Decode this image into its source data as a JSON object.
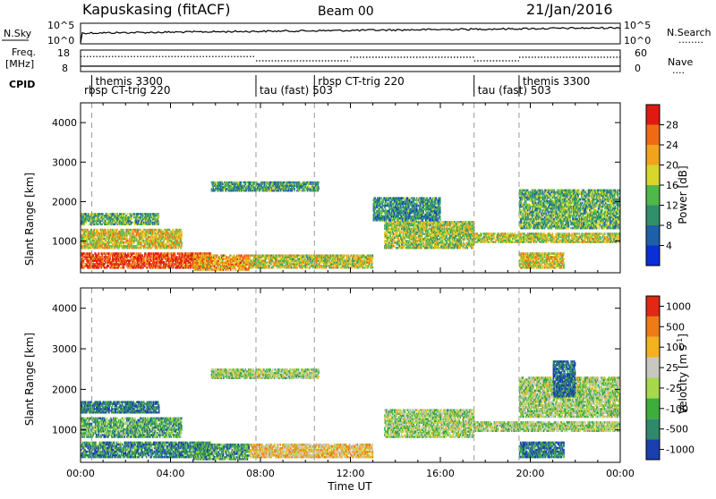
{
  "header": {
    "station": "Kapuskasing (fitACF)",
    "beam": "Beam 00",
    "date": "21/Jan/2016"
  },
  "sky_panel": {
    "left_label": "N.Sky",
    "left_ticks": [
      "10^5",
      "10^0"
    ],
    "right_ticks": [
      "10^5",
      "10^0"
    ],
    "right_label": "N.Search",
    "right_legend": "........"
  },
  "freq_panel": {
    "left_label_line1": "Freq.",
    "left_label_line2": "[MHz]",
    "left_ticks": [
      "18",
      "8"
    ],
    "right_ticks": [
      "60",
      "0"
    ],
    "right_label": "Nave",
    "right_legend": "....",
    "freq_level": 10.5,
    "nave_segments": [
      {
        "start": 0.0,
        "end": 7.8,
        "nave": 42
      },
      {
        "start": 7.8,
        "end": 12.0,
        "nave": 30
      },
      {
        "start": 12.0,
        "end": 17.5,
        "nave": 40
      },
      {
        "start": 17.5,
        "end": 19.5,
        "nave": 30
      },
      {
        "start": 19.5,
        "end": 24.0,
        "nave": 40
      }
    ]
  },
  "cpid_panel": {
    "label": "CPID",
    "modes": [
      {
        "text": "rbsp CT-trig 220",
        "start": 0.0,
        "row": 2
      },
      {
        "text": "themis 3300",
        "start": 0.5,
        "row": 1
      },
      {
        "text": "tau (fast) 503",
        "start": 7.8,
        "row": 2
      },
      {
        "text": "rbsp CT-trig 220",
        "start": 10.4,
        "row": 1
      },
      {
        "text": "tau (fast) 503",
        "start": 17.5,
        "row": 2
      },
      {
        "text": "themis 3300",
        "start": 19.5,
        "row": 1
      }
    ],
    "boundaries": [
      0.5,
      7.8,
      10.4,
      17.5,
      19.5
    ]
  },
  "chart_data": [
    {
      "type": "heatmap",
      "panel": "power",
      "ylabel": "Slant Range [km]",
      "ylim": [
        200,
        4500
      ],
      "yticks": [
        "1000",
        "2000",
        "3000",
        "4000"
      ],
      "colorbar_label": "Power [dB]",
      "colorbar_ticks": [
        "4",
        "8",
        "12",
        "16",
        "20",
        "24",
        "28"
      ],
      "colorbar_colors": [
        "#0a2fd6",
        "#1d5fa8",
        "#2f8f6a",
        "#4fb84a",
        "#d6d62a",
        "#f2a31c",
        "#f06a14",
        "#e01a12"
      ],
      "regions": [
        {
          "t0": 0.0,
          "t1": 5.8,
          "r0": 300,
          "r1": 700,
          "level": 0.9
        },
        {
          "t0": 0.0,
          "t1": 4.5,
          "r0": 800,
          "r1": 1300,
          "level": 0.6
        },
        {
          "t0": 0.0,
          "t1": 3.5,
          "r0": 1400,
          "r1": 1700,
          "level": 0.4
        },
        {
          "t0": 5.0,
          "t1": 7.5,
          "r0": 250,
          "r1": 650,
          "level": 0.7
        },
        {
          "t0": 7.5,
          "t1": 13.0,
          "r0": 300,
          "r1": 650,
          "level": 0.55
        },
        {
          "t0": 5.8,
          "t1": 10.6,
          "r0": 2250,
          "r1": 2500,
          "level": 0.35
        },
        {
          "t0": 13.5,
          "t1": 17.5,
          "r0": 800,
          "r1": 1500,
          "level": 0.5
        },
        {
          "t0": 17.5,
          "t1": 24.0,
          "r0": 950,
          "r1": 1200,
          "level": 0.55
        },
        {
          "t0": 19.5,
          "t1": 24.0,
          "r0": 1300,
          "r1": 2300,
          "level": 0.4
        },
        {
          "t0": 19.5,
          "t1": 21.5,
          "r0": 300,
          "r1": 700,
          "level": 0.6
        },
        {
          "t0": 13.0,
          "t1": 16.0,
          "r0": 1500,
          "r1": 2100,
          "level": 0.3
        }
      ]
    },
    {
      "type": "heatmap",
      "panel": "velocity",
      "ylabel": "Slant Range [km]",
      "xlabel": "Time UT",
      "ylim": [
        200,
        4500
      ],
      "yticks": [
        "1000",
        "2000",
        "3000",
        "4000"
      ],
      "xticks": [
        "00:00",
        "04:00",
        "08:00",
        "12:00",
        "16:00",
        "20:00",
        "00:00"
      ],
      "colorbar_label": "Velocity [m s^-1]",
      "colorbar_ticks": [
        "1000",
        "500",
        "100",
        "25",
        "-25",
        "-100",
        "-500",
        "-1000"
      ],
      "colorbar_colors": [
        "#1a3fb0",
        "#2e8a6a",
        "#3cae3c",
        "#a7d84a",
        "#c8c8c0",
        "#f2b21c",
        "#f07a14",
        "#e02812"
      ],
      "regions": [
        {
          "t0": 0.0,
          "t1": 5.8,
          "r0": 300,
          "r1": 700,
          "level": 0.2
        },
        {
          "t0": 0.0,
          "t1": 4.5,
          "r0": 800,
          "r1": 1300,
          "level": 0.3
        },
        {
          "t0": 0.0,
          "t1": 3.5,
          "r0": 1400,
          "r1": 1700,
          "level": 0.15
        },
        {
          "t0": 5.0,
          "t1": 7.5,
          "r0": 250,
          "r1": 650,
          "level": 0.25
        },
        {
          "t0": 7.5,
          "t1": 13.0,
          "r0": 300,
          "r1": 650,
          "level": 0.65
        },
        {
          "t0": 5.8,
          "t1": 10.6,
          "r0": 2250,
          "r1": 2500,
          "level": 0.45
        },
        {
          "t0": 13.5,
          "t1": 17.5,
          "r0": 800,
          "r1": 1500,
          "level": 0.45
        },
        {
          "t0": 17.5,
          "t1": 24.0,
          "r0": 950,
          "r1": 1200,
          "level": 0.45
        },
        {
          "t0": 19.5,
          "t1": 24.0,
          "r0": 1300,
          "r1": 2300,
          "level": 0.45
        },
        {
          "t0": 19.5,
          "t1": 21.5,
          "r0": 300,
          "r1": 700,
          "level": 0.15
        },
        {
          "t0": 21.0,
          "t1": 22.0,
          "r0": 1800,
          "r1": 2700,
          "level": 0.1
        }
      ]
    }
  ]
}
